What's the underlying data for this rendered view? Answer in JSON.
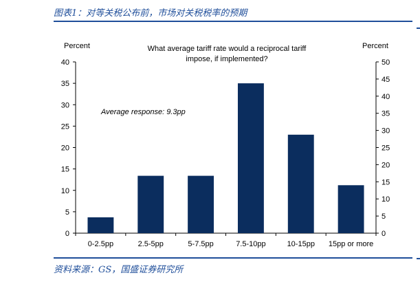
{
  "figure": {
    "caption": "图表1：对等关税公布前，市场对关税税率的预期",
    "source": "资料来源：GS，国盛证券研究所"
  },
  "chart_data": {
    "type": "bar",
    "title": "What average tariff rate would a reciprocal tariff impose, if implemented?",
    "title_lines": [
      "What average tariff rate would a reciprocal tariff",
      "impose, if implemented?"
    ],
    "annotation": "Average response: 9.3pp",
    "ylabel_left": "Percent",
    "ylabel_right": "Percent",
    "categories": [
      "0-2.5pp",
      "2.5-5pp",
      "5-7.5pp",
      "7.5-10pp",
      "10-15pp",
      "15pp or more"
    ],
    "values": [
      3.7,
      13.4,
      13.4,
      35.0,
      23.0,
      11.2
    ],
    "ylim": [
      0,
      40
    ],
    "yticks": [
      0,
      5,
      10,
      15,
      20,
      25,
      30,
      35,
      40
    ],
    "ylim_right": [
      0,
      50
    ],
    "yticks_right": [
      0,
      5,
      10,
      15,
      20,
      25,
      30,
      35,
      40,
      45,
      50
    ],
    "bar_color": "#0b2d5e",
    "grid": false,
    "legend": "none"
  }
}
